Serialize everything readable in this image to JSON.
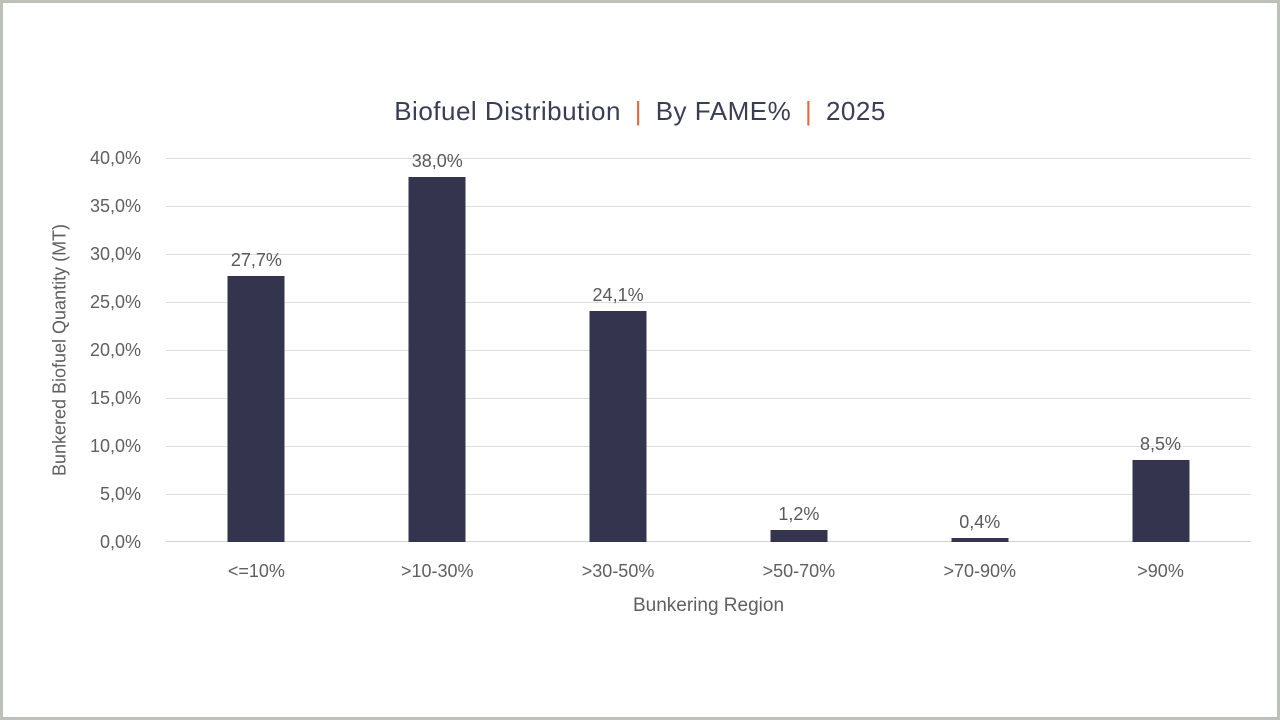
{
  "frame": {
    "border_color": "#bcc0b6",
    "background": "#ffffff"
  },
  "title": {
    "part1": "Biofuel Distribution",
    "separator": "|",
    "part2": "By FAME%",
    "part3": "2025",
    "text_color": "#3a3e55",
    "separator_color": "#e5683f"
  },
  "chart_data": {
    "type": "bar",
    "title": "Biofuel Distribution | By FAME% | 2025",
    "categories": [
      "<=10%",
      ">10-30%",
      ">30-50%",
      ">50-70%",
      ">70-90%",
      ">90%"
    ],
    "values": [
      27.7,
      38.0,
      24.1,
      1.2,
      0.4,
      8.5
    ],
    "value_labels": [
      "27,7%",
      "38,0%",
      "24,1%",
      "1,2%",
      "0,4%",
      "8,5%"
    ],
    "xlabel": "Bunkering Region",
    "ylabel": "Bunkered Biofuel Quantity (MT)",
    "ylim": [
      0,
      40
    ],
    "ytick_step": 5,
    "ytick_labels": [
      "0,0%",
      "5,0%",
      "10,0%",
      "15,0%",
      "20,0%",
      "25,0%",
      "30,0%",
      "35,0%",
      "40,0%"
    ],
    "grid": true,
    "legend": false,
    "bar_color": "#34344f",
    "gridline_color": "#dddddd",
    "axis_line_color": "#d2d2d2",
    "axis_text_color": "#5f5f5f",
    "label_text_color": "#595959"
  }
}
